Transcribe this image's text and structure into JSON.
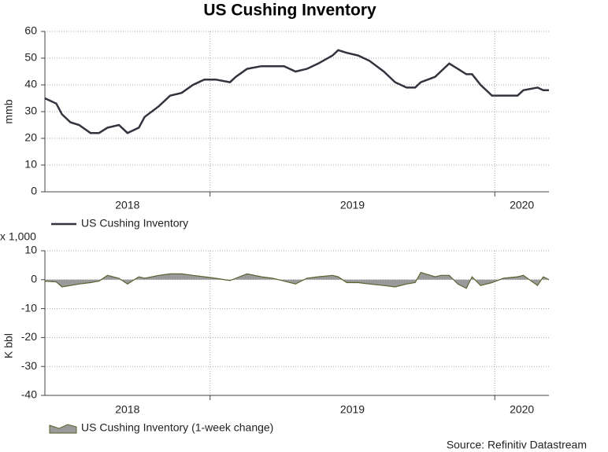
{
  "title": "US Cushing Inventory",
  "source": "Source: Refinitiv Datastream",
  "chart_data": [
    {
      "type": "line",
      "y_label": "mmb",
      "legend": "US Cushing Inventory",
      "color": "#33333f",
      "x_labels": [
        "2018",
        "2019",
        "2020"
      ],
      "xlim": [
        2018.42,
        2020.19
      ],
      "xticks": [
        2019,
        2020
      ],
      "ylim": [
        0,
        60
      ],
      "yticks": [
        0,
        10,
        20,
        30,
        40,
        50,
        60
      ],
      "grid": true,
      "x": [
        2018.42,
        2018.46,
        2018.48,
        2018.51,
        2018.54,
        2018.58,
        2018.61,
        2018.64,
        2018.68,
        2018.71,
        2018.75,
        2018.77,
        2018.82,
        2018.86,
        2018.9,
        2018.94,
        2018.98,
        2019.02,
        2019.07,
        2019.09,
        2019.13,
        2019.18,
        2019.22,
        2019.26,
        2019.3,
        2019.34,
        2019.38,
        2019.43,
        2019.45,
        2019.48,
        2019.52,
        2019.56,
        2019.61,
        2019.65,
        2019.69,
        2019.72,
        2019.74,
        2019.79,
        2019.81,
        2019.84,
        2019.87,
        2019.9,
        2019.92,
        2019.95,
        2019.99,
        2020.03,
        2020.08,
        2020.1,
        2020.15,
        2020.17,
        2020.19
      ],
      "values": [
        35,
        33,
        29,
        26,
        25,
        22,
        22,
        24,
        25,
        22,
        24,
        28,
        32,
        36,
        37,
        40,
        42,
        42,
        41,
        43,
        46,
        47,
        47,
        47,
        45,
        46,
        48,
        51,
        53,
        52,
        51,
        49,
        45,
        41,
        39,
        39,
        41,
        43,
        45,
        48,
        46,
        44,
        44,
        40,
        36,
        36,
        36,
        38,
        39,
        38,
        38
      ]
    },
    {
      "type": "area",
      "y_label": "K bbl",
      "y_unit": "x 1,000",
      "legend": "US Cushing Inventory (1-week change)",
      "color": "#9a9a9a",
      "edge_color": "#5f5f2e",
      "x_labels": [
        "2018",
        "2019",
        "2020"
      ],
      "xlim": [
        2018.42,
        2020.19
      ],
      "xticks": [
        2019,
        2020
      ],
      "ylim": [
        -40,
        10
      ],
      "yticks": [
        -40,
        -30,
        -20,
        -10,
        0,
        10
      ],
      "grid": true,
      "x": [
        2018.42,
        2018.46,
        2018.48,
        2018.51,
        2018.54,
        2018.58,
        2018.61,
        2018.64,
        2018.68,
        2018.71,
        2018.75,
        2018.77,
        2018.82,
        2018.86,
        2018.9,
        2018.94,
        2018.98,
        2019.02,
        2019.07,
        2019.09,
        2019.13,
        2019.18,
        2019.22,
        2019.26,
        2019.3,
        2019.34,
        2019.38,
        2019.43,
        2019.45,
        2019.48,
        2019.52,
        2019.56,
        2019.61,
        2019.65,
        2019.69,
        2019.72,
        2019.74,
        2019.79,
        2019.81,
        2019.84,
        2019.87,
        2019.9,
        2019.92,
        2019.95,
        2019.99,
        2020.03,
        2020.08,
        2020.1,
        2020.15,
        2020.17,
        2020.19
      ],
      "values": [
        -0.5,
        -0.8,
        -2.5,
        -2,
        -1.5,
        -1,
        -0.5,
        1.5,
        0.5,
        -1.5,
        1,
        0.5,
        1.5,
        2,
        2,
        1.5,
        1,
        0.5,
        -0.3,
        0.5,
        2,
        1,
        0.5,
        -0.5,
        -1.5,
        0.5,
        1,
        1.5,
        1,
        -1,
        -1,
        -1.5,
        -2,
        -2.5,
        -1.5,
        -1,
        2.5,
        1,
        1.5,
        1.5,
        -1.5,
        -3,
        1,
        -2,
        -1,
        0.5,
        1,
        1.5,
        -2,
        1,
        0
      ]
    }
  ]
}
